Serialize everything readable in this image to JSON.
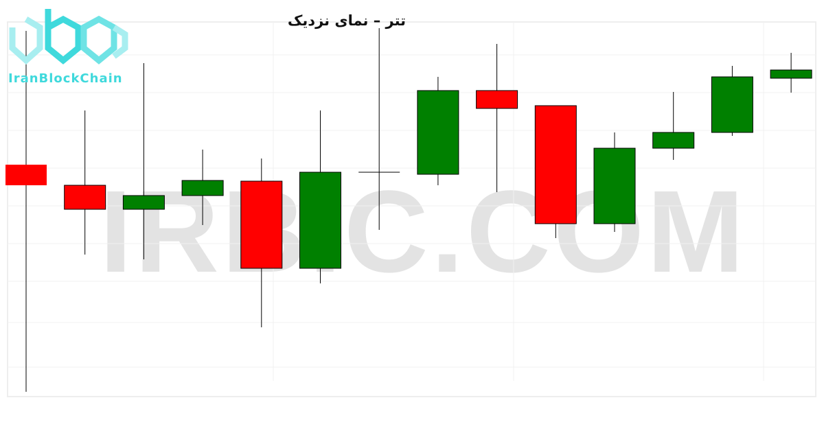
{
  "chart_data": {
    "type": "candlestick",
    "title": "تتر – نمای نزدیک",
    "xlabel": "",
    "ylabel": "",
    "ylim": [
      0,
      60
    ],
    "grid": true,
    "colors": {
      "up": "#008000",
      "down": "#ff0000"
    },
    "candles": [
      {
        "open": 36.0,
        "high": 55.5,
        "low": 2.9,
        "close": 33.0
      },
      {
        "open": 33.0,
        "high": 43.9,
        "low": 22.9,
        "close": 29.5
      },
      {
        "open": 29.5,
        "high": 50.8,
        "low": 22.2,
        "close": 31.5
      },
      {
        "open": 31.5,
        "high": 38.2,
        "low": 27.2,
        "close": 33.7
      },
      {
        "open": 33.6,
        "high": 36.9,
        "low": 12.3,
        "close": 20.9
      },
      {
        "open": 20.9,
        "high": 43.9,
        "low": 18.7,
        "close": 34.9
      },
      {
        "open": 34.9,
        "high": 55.9,
        "low": 26.5,
        "close": 34.9
      },
      {
        "open": 34.6,
        "high": 48.8,
        "low": 33.0,
        "close": 46.8
      },
      {
        "open": 46.8,
        "high": 53.6,
        "low": 32.0,
        "close": 44.2
      },
      {
        "open": 44.6,
        "high": 44.6,
        "low": 25.3,
        "close": 27.4
      },
      {
        "open": 27.4,
        "high": 40.7,
        "low": 26.2,
        "close": 38.4
      },
      {
        "open": 38.4,
        "high": 46.6,
        "low": 36.7,
        "close": 40.7
      },
      {
        "open": 40.7,
        "high": 50.4,
        "low": 40.2,
        "close": 48.8
      },
      {
        "open": 48.6,
        "high": 52.3,
        "low": 46.5,
        "close": 49.8
      }
    ]
  },
  "branding": {
    "logo_text": "IranBlockChain",
    "watermark": "IRBIC.COM",
    "logo_color": "#3fd9dc"
  }
}
